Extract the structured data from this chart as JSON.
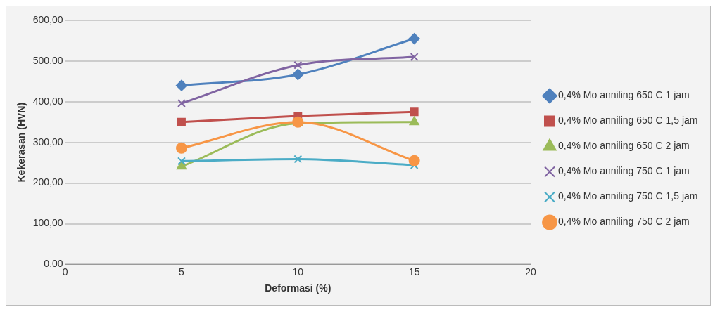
{
  "chart_data": {
    "type": "line",
    "xlabel": "Deformasi (%)",
    "ylabel": "Kekerasan (HVN)",
    "x": [
      5,
      10,
      15
    ],
    "xlim": [
      0,
      20
    ],
    "xticks": [
      0,
      5,
      10,
      15,
      20
    ],
    "ylim": [
      0,
      600
    ],
    "yticks": [
      {
        "value": 0,
        "label": "0,00"
      },
      {
        "value": 100,
        "label": "100,00"
      },
      {
        "value": 200,
        "label": "200,00"
      },
      {
        "value": 300,
        "label": "300,00"
      },
      {
        "value": 400,
        "label": "400,00"
      },
      {
        "value": 500,
        "label": "500,00"
      },
      {
        "value": 600,
        "label": "600,00"
      }
    ],
    "grid": "y",
    "legend": "right",
    "series": [
      {
        "name": "0,4% Mo anniling 650 C 1 jam",
        "color": "#4f81bd",
        "marker": "diamond",
        "values": [
          440,
          467,
          555
        ]
      },
      {
        "name": "0,4% Mo anniling 650 C 1,5 jam",
        "color": "#c0504d",
        "marker": "square",
        "values": [
          350,
          365,
          375
        ]
      },
      {
        "name": "0,4% Mo anniling 650 C 2 jam",
        "color": "#9bbb59",
        "marker": "triangle",
        "values": [
          241,
          347,
          350
        ]
      },
      {
        "name": "0,4% Mo anniling 750 C 1 jam",
        "color": "#8064a2",
        "marker": "cross",
        "values": [
          396,
          490,
          510
        ]
      },
      {
        "name": "0,4% Mo anniling 750 C 1,5 jam",
        "color": "#4bacc6",
        "marker": "cross",
        "values": [
          254,
          259,
          244
        ]
      },
      {
        "name": "0,4% Mo anniling 750 C 2 jam",
        "color": "#f79646",
        "marker": "circle",
        "values": [
          286,
          350,
          255
        ]
      }
    ]
  }
}
